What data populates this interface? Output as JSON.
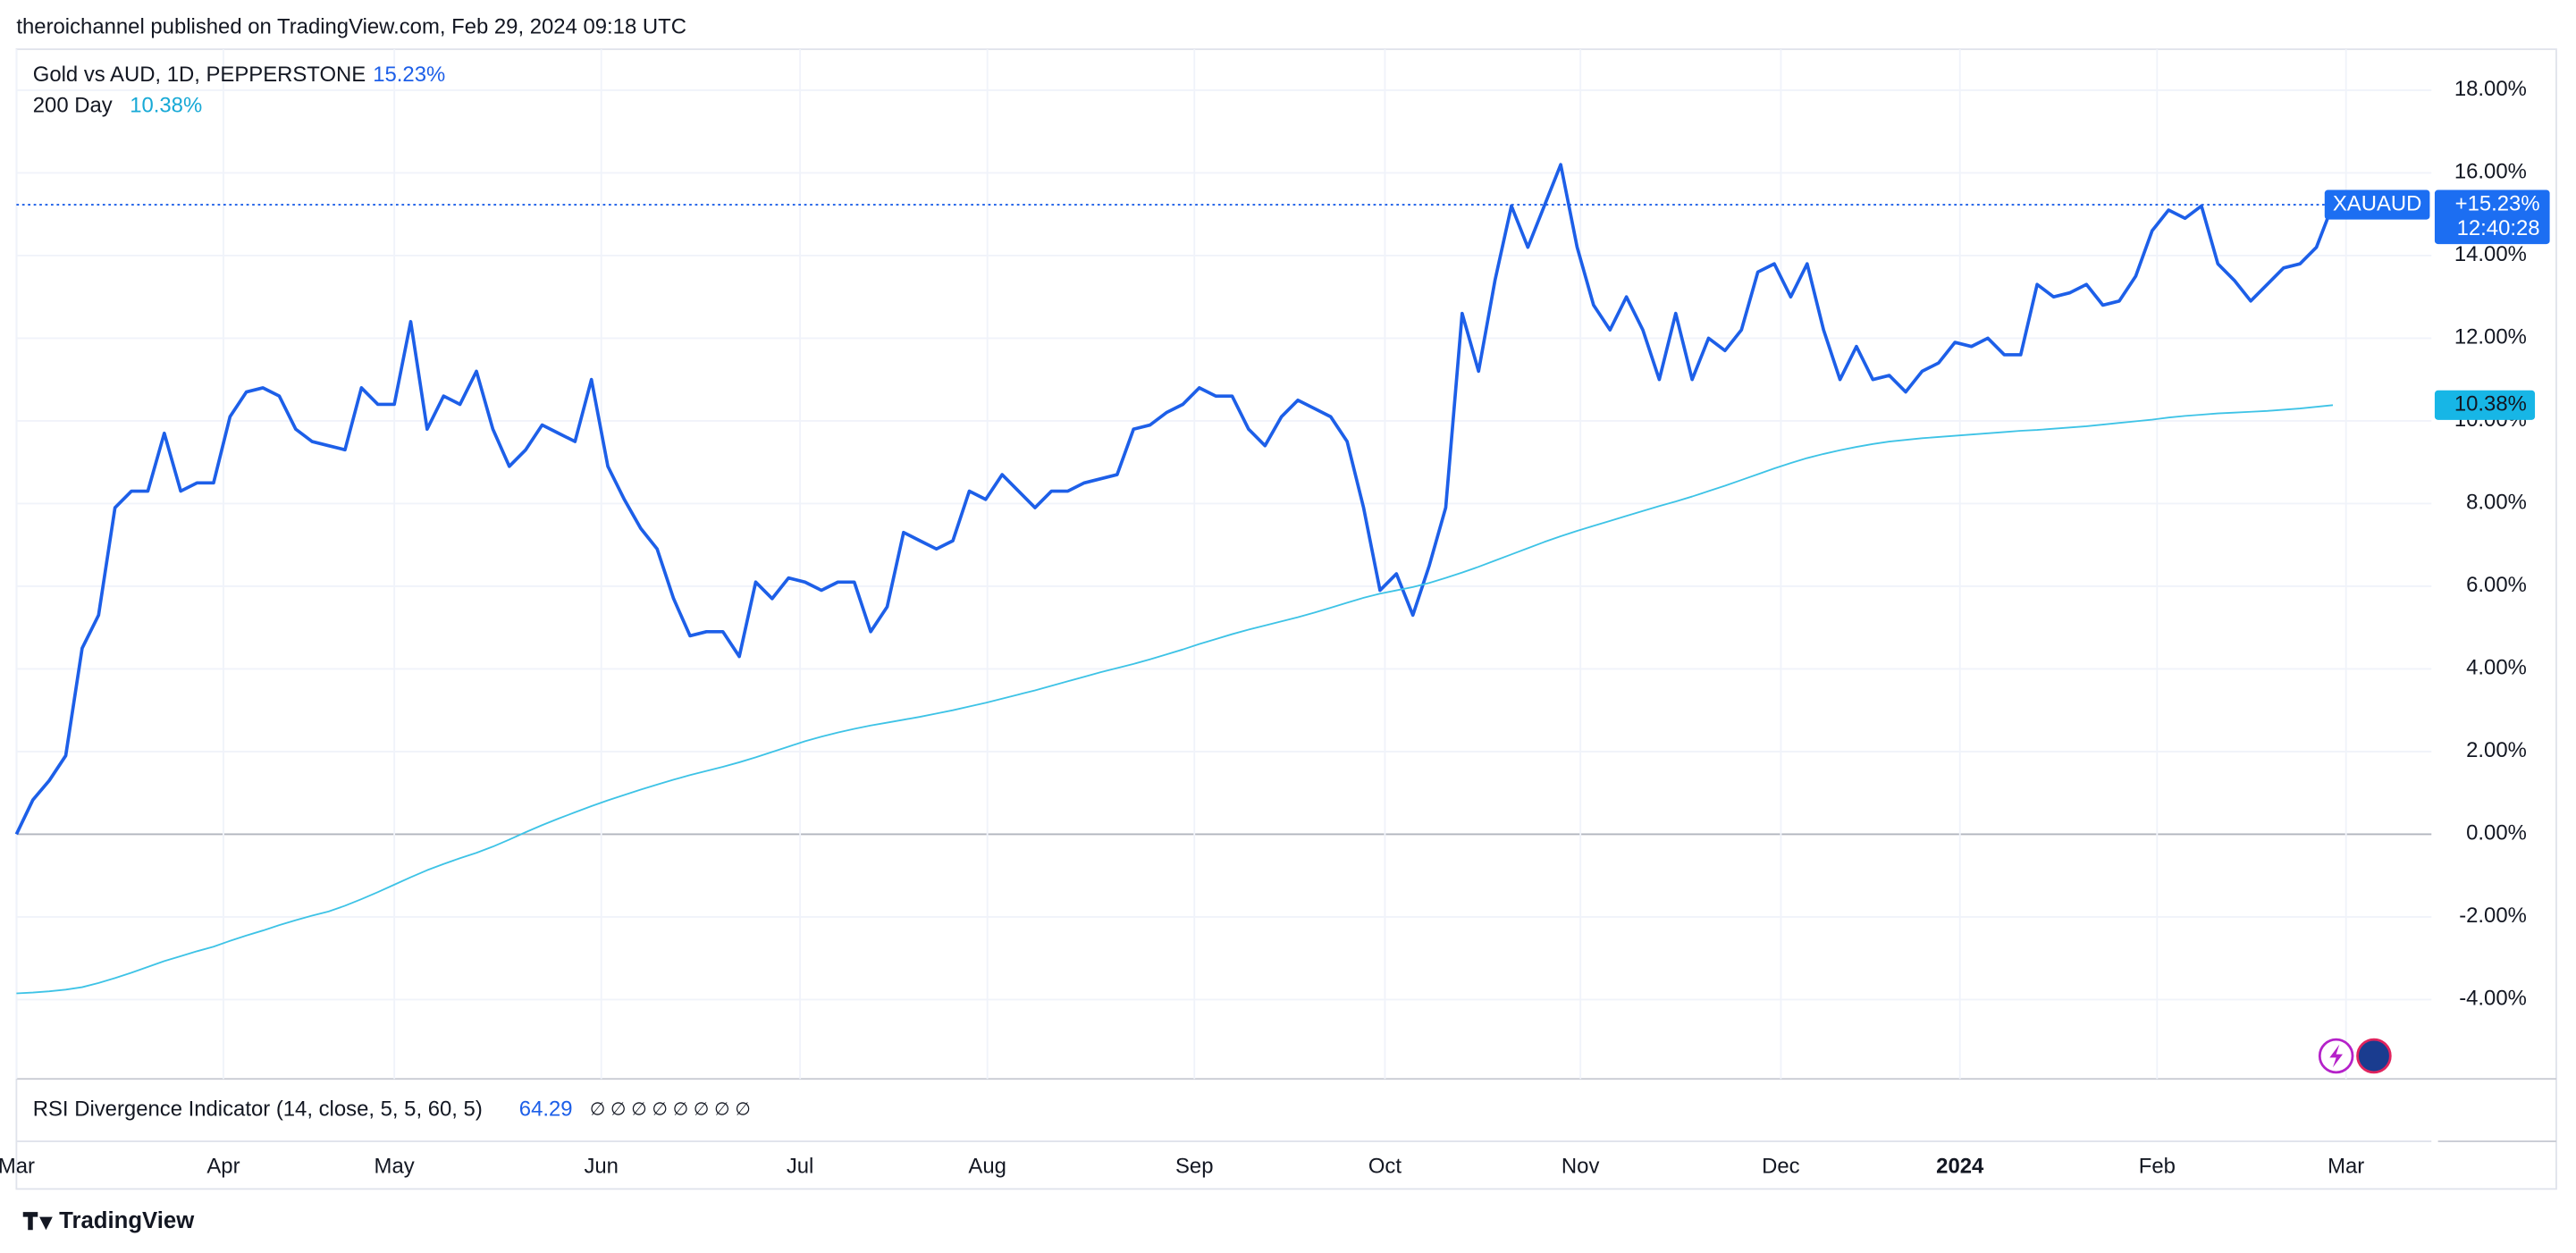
{
  "header": "theroichannel published on TradingView.com, Feb 29, 2024 09:18 UTC",
  "chart_data": {
    "type": "line",
    "title": "Gold vs AUD, 1D, PEPPERSTONE",
    "title_value": "15.23%",
    "symbol": "XAUAUD",
    "price_label": "+15.23%",
    "countdown": "12:40:28",
    "xlim": [
      0,
      147
    ],
    "xticks": [
      {
        "value": 0,
        "label": "Mar"
      },
      {
        "value": 12.6,
        "label": "Apr"
      },
      {
        "value": 23,
        "label": "May"
      },
      {
        "value": 35.6,
        "label": "Jun"
      },
      {
        "value": 47.7,
        "label": "Jul"
      },
      {
        "value": 59.1,
        "label": "Aug"
      },
      {
        "value": 71.7,
        "label": "Sep"
      },
      {
        "value": 83.3,
        "label": "Oct"
      },
      {
        "value": 95.2,
        "label": "Nov"
      },
      {
        "value": 107.4,
        "label": "Dec"
      },
      {
        "value": 118.3,
        "label": "2024"
      },
      {
        "value": 130.3,
        "label": "Feb"
      },
      {
        "value": 141.8,
        "label": "Mar"
      }
    ],
    "ylim": [
      -5.92,
      18.99
    ],
    "yticks": [
      {
        "value": -4,
        "label": "-4.00%"
      },
      {
        "value": -2,
        "label": "-2.00%"
      },
      {
        "value": 0,
        "label": "0.00%"
      },
      {
        "value": 2,
        "label": "2.00%"
      },
      {
        "value": 4,
        "label": "4.00%"
      },
      {
        "value": 6,
        "label": "6.00%"
      },
      {
        "value": 8,
        "label": "8.00%"
      },
      {
        "value": 10,
        "label": "10.00%"
      },
      {
        "value": 12,
        "label": "12.00%"
      },
      {
        "value": 14,
        "label": "14.00%"
      },
      {
        "value": 16,
        "label": "16.00%"
      },
      {
        "value": 18,
        "label": "18.00%"
      }
    ],
    "grid": true,
    "series": [
      {
        "name": "Gold vs AUD",
        "color": "#1d5fe8",
        "values": [
          0,
          0.83,
          1.3,
          1.9,
          4.5,
          5.3,
          7.9,
          8.3,
          8.3,
          9.7,
          8.3,
          8.5,
          8.5,
          10.1,
          10.7,
          10.8,
          10.6,
          9.8,
          9.5,
          9.4,
          9.3,
          10.8,
          10.4,
          10.4,
          12.4,
          9.8,
          10.6,
          10.4,
          11.2,
          9.8,
          8.9,
          9.3,
          9.9,
          9.7,
          9.5,
          11.0,
          8.9,
          8.1,
          7.4,
          6.9,
          5.7,
          4.8,
          4.9,
          4.9,
          4.3,
          6.1,
          5.7,
          6.2,
          6.1,
          5.9,
          6.1,
          6.1,
          4.9,
          5.5,
          7.3,
          7.1,
          6.9,
          7.1,
          8.3,
          8.1,
          8.7,
          8.3,
          7.9,
          8.3,
          8.3,
          8.5,
          8.6,
          8.7,
          9.8,
          9.9,
          10.2,
          10.4,
          10.8,
          10.6,
          10.6,
          9.8,
          9.4,
          10.1,
          10.5,
          10.3,
          10.1,
          9.5,
          7.9,
          5.9,
          6.3,
          5.3,
          6.5,
          7.9,
          12.6,
          11.2,
          13.4,
          15.2,
          14.2,
          15.2,
          16.2,
          14.2,
          12.8,
          12.2,
          13.0,
          12.2,
          11.0,
          12.6,
          11.0,
          12.0,
          11.7,
          12.2,
          13.6,
          13.8,
          13.0,
          13.8,
          12.2,
          11.0,
          11.8,
          11.0,
          11.1,
          10.7,
          11.2,
          11.4,
          11.9,
          11.8,
          12.0,
          11.6,
          11.6,
          13.3,
          13.0,
          13.1,
          13.3,
          12.8,
          12.9,
          13.5,
          14.6,
          15.1,
          14.9,
          15.2,
          13.8,
          13.4,
          12.9,
          13.3,
          13.7,
          13.8,
          14.2,
          15.23
        ]
      },
      {
        "name": "200 Day",
        "color": "#3ec3e6",
        "value_label": "10.38%",
        "values": [
          -3.85,
          -3.83,
          -3.8,
          -3.76,
          -3.7,
          -3.6,
          -3.48,
          -3.35,
          -3.21,
          -3.07,
          -2.95,
          -2.83,
          -2.72,
          -2.58,
          -2.45,
          -2.33,
          -2.2,
          -2.08,
          -1.97,
          -1.87,
          -1.73,
          -1.57,
          -1.4,
          -1.22,
          -1.04,
          -0.87,
          -0.72,
          -0.58,
          -0.45,
          -0.3,
          -0.13,
          0.05,
          0.22,
          0.38,
          0.53,
          0.68,
          0.82,
          0.95,
          1.08,
          1.2,
          1.32,
          1.43,
          1.53,
          1.63,
          1.74,
          1.86,
          1.99,
          2.12,
          2.25,
          2.36,
          2.46,
          2.55,
          2.63,
          2.7,
          2.77,
          2.84,
          2.92,
          3.0,
          3.09,
          3.18,
          3.28,
          3.38,
          3.48,
          3.59,
          3.7,
          3.81,
          3.92,
          4.02,
          4.12,
          4.23,
          4.35,
          4.47,
          4.6,
          4.72,
          4.84,
          4.95,
          5.05,
          5.15,
          5.25,
          5.36,
          5.48,
          5.6,
          5.72,
          5.82,
          5.9,
          5.98,
          6.08,
          6.2,
          6.33,
          6.47,
          6.62,
          6.77,
          6.92,
          7.07,
          7.21,
          7.34,
          7.46,
          7.58,
          7.7,
          7.82,
          7.94,
          8.05,
          8.17,
          8.3,
          8.43,
          8.57,
          8.71,
          8.85,
          8.98,
          9.1,
          9.2,
          9.29,
          9.37,
          9.44,
          9.5,
          9.54,
          9.58,
          9.61,
          9.64,
          9.67,
          9.7,
          9.73,
          9.76,
          9.78,
          9.81,
          9.84,
          9.87,
          9.91,
          9.95,
          9.99,
          10.03,
          10.08,
          10.12,
          10.15,
          10.18,
          10.2,
          10.22,
          10.24,
          10.27,
          10.3,
          10.34,
          10.38
        ]
      }
    ]
  },
  "indicator": {
    "name": "RSI Divergence Indicator (14, close, 5, 5, 60, 5)",
    "value": "64.29",
    "flags": "∅ ∅ ∅ ∅ ∅ ∅ ∅ ∅"
  },
  "footer": "TradingView"
}
